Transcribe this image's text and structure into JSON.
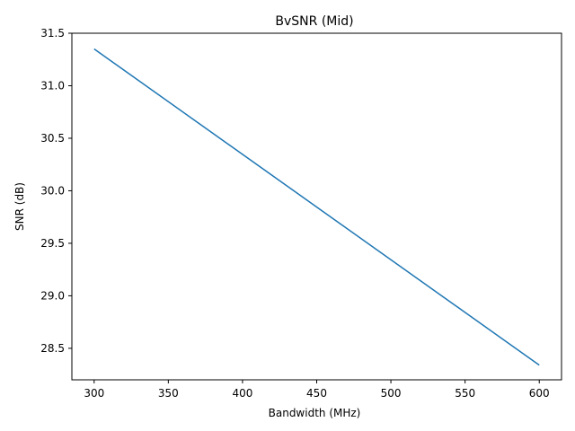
{
  "chart_data": {
    "type": "line",
    "title": "BvSNR (Mid)",
    "xlabel": "Bandwidth (MHz)",
    "ylabel": "SNR (dB)",
    "xlim": [
      285,
      615
    ],
    "ylim": [
      28.2,
      31.5
    ],
    "x_ticks": [
      300,
      350,
      400,
      450,
      500,
      550,
      600
    ],
    "x_tick_labels": [
      "300",
      "350",
      "400",
      "450",
      "500",
      "550",
      "600"
    ],
    "y_ticks": [
      28.5,
      29.0,
      29.5,
      30.0,
      30.5,
      31.0,
      31.5
    ],
    "y_tick_labels": [
      "28.5",
      "29.0",
      "29.5",
      "30.0",
      "30.5",
      "31.0",
      "31.5"
    ],
    "grid": false,
    "series": [
      {
        "color": "#1f77b4",
        "x": [
          300,
          600
        ],
        "y": [
          31.35,
          28.34
        ]
      }
    ]
  }
}
